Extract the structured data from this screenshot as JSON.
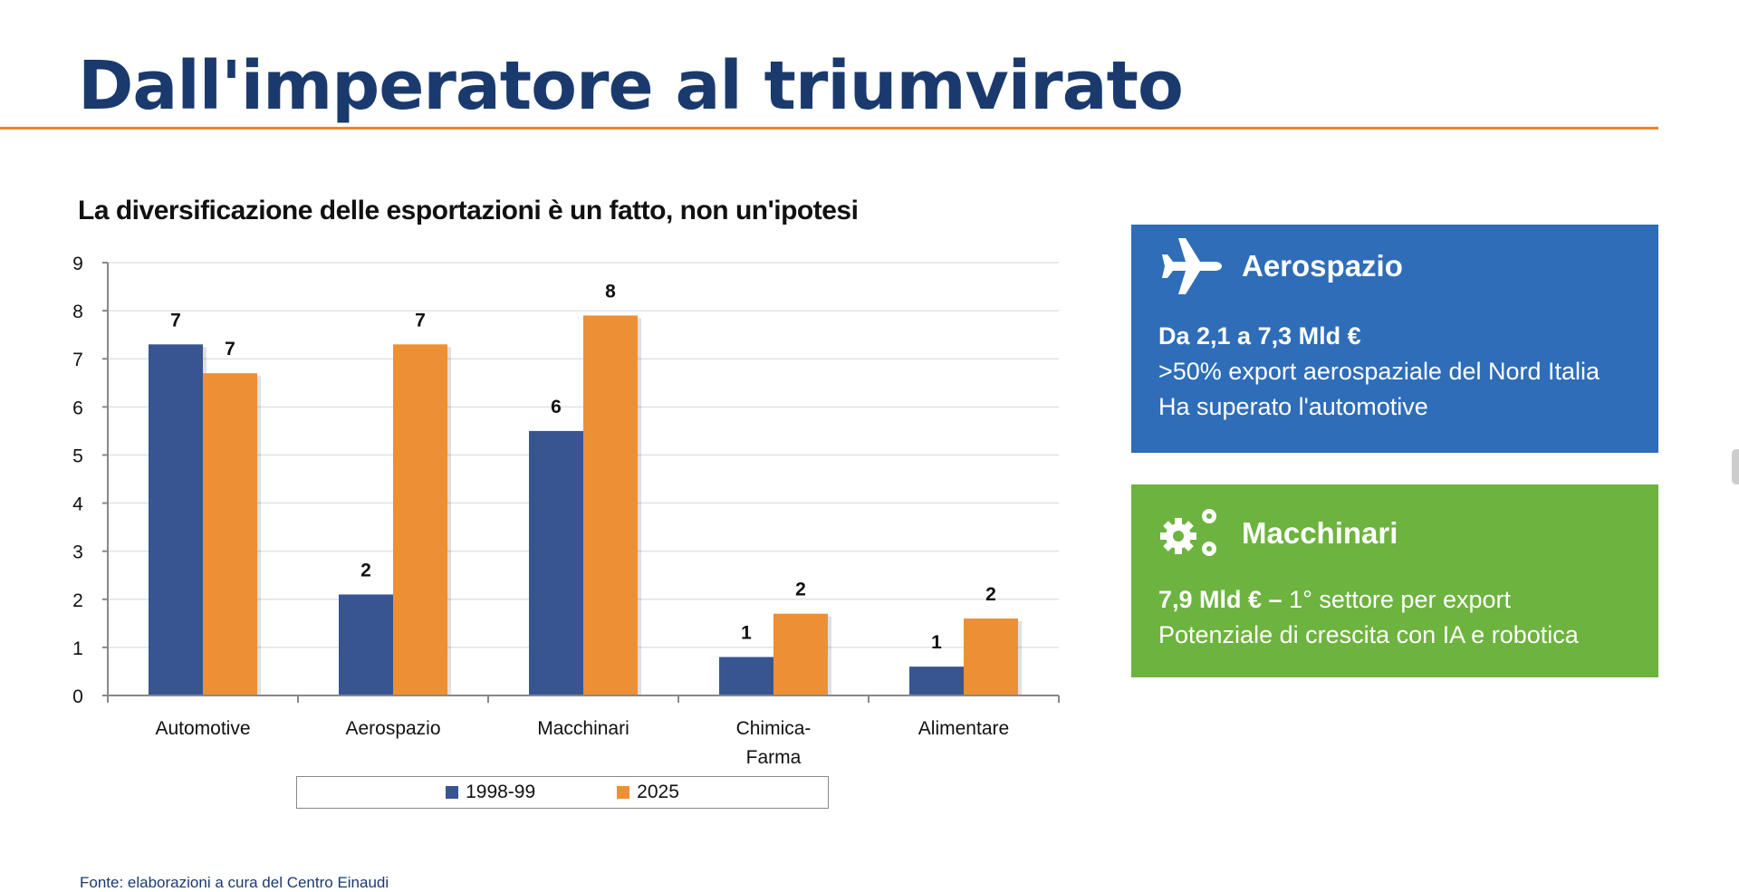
{
  "page": {
    "title": "Dall'imperatore al triumvirato",
    "source": "Fonte: elaborazioni a cura del Centro Einaudi"
  },
  "chart_data": {
    "type": "bar",
    "title": "La diversificazione delle esportazioni è un fatto, non un'ipotesi",
    "categories": [
      "Automotive",
      "Aerospazio",
      "Macchinari",
      "Chimica-Farma",
      "Alimentare"
    ],
    "category_lines": [
      [
        "Automotive"
      ],
      [
        "Aerospazio"
      ],
      [
        "Macchinari"
      ],
      [
        "Chimica-",
        "Farma"
      ],
      [
        "Alimentare"
      ]
    ],
    "series": [
      {
        "name": "1998-99",
        "color": "#385592",
        "values": [
          7.3,
          2.1,
          5.5,
          0.8,
          0.6
        ],
        "labels": [
          "7",
          "2",
          "6",
          "1",
          "1"
        ]
      },
      {
        "name": "2025",
        "color": "#ed8f35",
        "values": [
          6.7,
          7.3,
          7.9,
          1.7,
          1.6
        ],
        "labels": [
          "7",
          "7",
          "8",
          "2",
          "2"
        ]
      }
    ],
    "xlabel": "",
    "ylabel": "",
    "ylim": [
      0,
      9
    ],
    "yticks": [
      0,
      1,
      2,
      3,
      4,
      5,
      6,
      7,
      8,
      9
    ],
    "grid": true,
    "legend": "bottom"
  },
  "cards": [
    {
      "title": "Aerospazio",
      "icon": "airplane-icon",
      "color": "#2f6db8",
      "lines": [
        "Da 2,1 a 7,3 Mld €",
        ">50% export aerospaziale del Nord Italia",
        "Ha superato l'automotive"
      ]
    },
    {
      "title": "Macchinari",
      "icon": "gears-icon",
      "color": "#6db33f",
      "bold": "7,9 Mld € –",
      "rest": " 1° settore per export",
      "lines": [
        "Potenziale di crescita con IA e robotica"
      ]
    }
  ]
}
